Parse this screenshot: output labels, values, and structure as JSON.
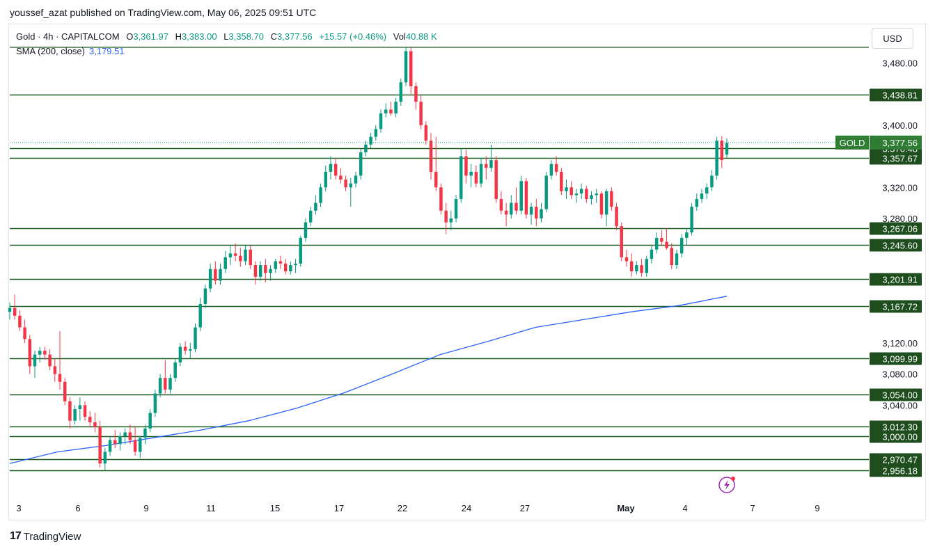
{
  "publisher": "youssef_azat published on TradingView.com, May 06, 2025 09:51 UTC",
  "legend": {
    "symbol": "Gold · 4h · CAPITALCOM",
    "o_label": "O",
    "o": "3,361.97",
    "h_label": "H",
    "h": "3,383.00",
    "l_label": "L",
    "l": "3,358.70",
    "c_label": "C",
    "c": "3,377.56",
    "change": "+15.57 (+0.46%)",
    "vol_label": "Vol",
    "vol": "40.88 K"
  },
  "sma": {
    "label": "SMA (200, close)",
    "value": "3,179.51"
  },
  "currency": "USD",
  "brand": "TradingView",
  "colors": {
    "up": "#089981",
    "down": "#f23645",
    "level_line": "#1b5e20",
    "level_label_bg": "#1e4d1e",
    "sma": "#2962ff",
    "price_label_bg": "#2e7d32"
  },
  "chart_data": {
    "type": "candlestick",
    "title": "Gold · 4h · CAPITALCOM",
    "ylim": [
      2950,
      3500
    ],
    "y_axis_ticks": [
      "3,480.00",
      "3,400.00",
      "3,320.00",
      "3,280.00",
      "3,120.00",
      "3,080.00",
      "3,040.00"
    ],
    "x_axis_ticks": [
      "3",
      "6",
      "9",
      "11",
      "15",
      "17",
      "22",
      "24",
      "27",
      "May",
      "4",
      "7",
      "9"
    ],
    "horizontal_levels": [
      "3,438.81",
      "3,370.48",
      "3,357.67",
      "3,267.06",
      "3,245.60",
      "3,201.91",
      "3,167.72",
      "3,099.99",
      "3,054.00",
      "3,012.30",
      "3,000.00",
      "2,970.47",
      "2,956.18"
    ],
    "current_price": {
      "label": "GOLD",
      "value": "3,377.56"
    },
    "sma_series": {
      "name": "SMA (200, close)",
      "values": [
        2965,
        2980,
        2988,
        2998,
        3008,
        3020,
        3036,
        3056,
        3080,
        3105,
        3122,
        3140,
        3150,
        3160,
        3168,
        3180
      ]
    },
    "candles": [
      [
        3160,
        3172,
        3150,
        3165
      ],
      [
        3165,
        3182,
        3150,
        3155
      ],
      [
        3155,
        3162,
        3135,
        3140
      ],
      [
        3140,
        3150,
        3120,
        3125
      ],
      [
        3125,
        3130,
        3080,
        3090
      ],
      [
        3090,
        3110,
        3075,
        3105
      ],
      [
        3105,
        3115,
        3095,
        3110
      ],
      [
        3110,
        3115,
        3098,
        3105
      ],
      [
        3105,
        3112,
        3085,
        3090
      ],
      [
        3090,
        3100,
        3070,
        3080
      ],
      [
        3080,
        3135,
        3060,
        3070
      ],
      [
        3070,
        3075,
        3040,
        3045
      ],
      [
        3045,
        3050,
        3010,
        3020
      ],
      [
        3020,
        3040,
        3015,
        3035
      ],
      [
        3035,
        3050,
        3020,
        3040
      ],
      [
        3040,
        3045,
        3020,
        3025
      ],
      [
        3025,
        3032,
        3012,
        3018
      ],
      [
        3018,
        3030,
        3005,
        3012
      ],
      [
        3012,
        3020,
        2960,
        2965
      ],
      [
        2965,
        2985,
        2956,
        2980
      ],
      [
        2980,
        3000,
        2975,
        2995
      ],
      [
        2995,
        3008,
        2985,
        2990
      ],
      [
        2990,
        3005,
        2982,
        3000
      ],
      [
        3000,
        3010,
        2990,
        3005
      ],
      [
        3005,
        3015,
        2990,
        2995
      ],
      [
        2995,
        3012,
        2975,
        2980
      ],
      [
        2980,
        3000,
        2972,
        2998
      ],
      [
        2998,
        3015,
        2990,
        3010
      ],
      [
        3010,
        3035,
        3005,
        3030
      ],
      [
        3030,
        3060,
        3025,
        3055
      ],
      [
        3055,
        3080,
        3050,
        3075
      ],
      [
        3075,
        3098,
        3055,
        3060
      ],
      [
        3060,
        3080,
        3055,
        3075
      ],
      [
        3075,
        3100,
        3070,
        3095
      ],
      [
        3095,
        3120,
        3090,
        3115
      ],
      [
        3115,
        3122,
        3105,
        3110
      ],
      [
        3110,
        3120,
        3100,
        3112
      ],
      [
        3112,
        3145,
        3108,
        3140
      ],
      [
        3140,
        3178,
        3135,
        3170
      ],
      [
        3170,
        3195,
        3165,
        3190
      ],
      [
        3190,
        3222,
        3185,
        3215
      ],
      [
        3215,
        3225,
        3195,
        3200
      ],
      [
        3200,
        3222,
        3195,
        3215
      ],
      [
        3215,
        3238,
        3210,
        3230
      ],
      [
        3230,
        3245,
        3220,
        3235
      ],
      [
        3235,
        3248,
        3225,
        3232
      ],
      [
        3232,
        3242,
        3218,
        3225
      ],
      [
        3225,
        3245,
        3220,
        3240
      ],
      [
        3240,
        3245,
        3215,
        3220
      ],
      [
        3220,
        3225,
        3195,
        3205
      ],
      [
        3205,
        3225,
        3200,
        3220
      ],
      [
        3220,
        3228,
        3198,
        3210
      ],
      [
        3210,
        3220,
        3200,
        3215
      ],
      [
        3215,
        3228,
        3210,
        3225
      ],
      [
        3225,
        3232,
        3215,
        3222
      ],
      [
        3222,
        3228,
        3208,
        3212
      ],
      [
        3212,
        3225,
        3208,
        3220
      ],
      [
        3220,
        3228,
        3210,
        3222
      ],
      [
        3222,
        3258,
        3218,
        3255
      ],
      [
        3255,
        3280,
        3250,
        3275
      ],
      [
        3275,
        3295,
        3270,
        3290
      ],
      [
        3290,
        3310,
        3285,
        3300
      ],
      [
        3300,
        3325,
        3295,
        3320
      ],
      [
        3320,
        3348,
        3315,
        3340
      ],
      [
        3340,
        3360,
        3330,
        3350
      ],
      [
        3350,
        3358,
        3330,
        3335
      ],
      [
        3335,
        3345,
        3325,
        3330
      ],
      [
        3330,
        3335,
        3315,
        3320
      ],
      [
        3320,
        3332,
        3295,
        3325
      ],
      [
        3325,
        3340,
        3320,
        3335
      ],
      [
        3335,
        3370,
        3330,
        3365
      ],
      [
        3365,
        3380,
        3360,
        3375
      ],
      [
        3375,
        3390,
        3370,
        3385
      ],
      [
        3385,
        3400,
        3380,
        3395
      ],
      [
        3395,
        3420,
        3390,
        3415
      ],
      [
        3415,
        3428,
        3410,
        3420
      ],
      [
        3420,
        3430,
        3412,
        3415
      ],
      [
        3415,
        3435,
        3410,
        3430
      ],
      [
        3430,
        3460,
        3425,
        3455
      ],
      [
        3455,
        3500,
        3450,
        3495
      ],
      [
        3495,
        3500,
        3440,
        3450
      ],
      [
        3450,
        3455,
        3420,
        3430
      ],
      [
        3430,
        3438,
        3395,
        3400
      ],
      [
        3400,
        3405,
        3375,
        3380
      ],
      [
        3380,
        3390,
        3330,
        3340
      ],
      [
        3340,
        3385,
        3315,
        3320
      ],
      [
        3320,
        3325,
        3285,
        3290
      ],
      [
        3290,
        3300,
        3260,
        3275
      ],
      [
        3275,
        3290,
        3265,
        3280
      ],
      [
        3280,
        3310,
        3275,
        3305
      ],
      [
        3305,
        3370,
        3300,
        3360
      ],
      [
        3360,
        3368,
        3325,
        3335
      ],
      [
        3335,
        3350,
        3320,
        3340
      ],
      [
        3340,
        3348,
        3320,
        3325
      ],
      [
        3325,
        3358,
        3320,
        3350
      ],
      [
        3350,
        3360,
        3330,
        3345
      ],
      [
        3345,
        3375,
        3340,
        3355
      ],
      [
        3355,
        3360,
        3300,
        3305
      ],
      [
        3305,
        3315,
        3285,
        3290
      ],
      [
        3290,
        3300,
        3270,
        3285
      ],
      [
        3285,
        3310,
        3280,
        3300
      ],
      [
        3300,
        3320,
        3285,
        3290
      ],
      [
        3290,
        3335,
        3285,
        3328
      ],
      [
        3328,
        3332,
        3280,
        3285
      ],
      [
        3285,
        3300,
        3272,
        3295
      ],
      [
        3295,
        3305,
        3270,
        3280
      ],
      [
        3280,
        3300,
        3275,
        3292
      ],
      [
        3292,
        3340,
        3288,
        3335
      ],
      [
        3335,
        3355,
        3330,
        3350
      ],
      [
        3350,
        3360,
        3335,
        3340
      ],
      [
        3340,
        3345,
        3310,
        3315
      ],
      [
        3315,
        3330,
        3305,
        3320
      ],
      [
        3320,
        3328,
        3305,
        3310
      ],
      [
        3310,
        3318,
        3300,
        3312
      ],
      [
        3312,
        3325,
        3305,
        3318
      ],
      [
        3318,
        3322,
        3300,
        3305
      ],
      [
        3305,
        3315,
        3298,
        3310
      ],
      [
        3310,
        3318,
        3300,
        3312
      ],
      [
        3312,
        3315,
        3280,
        3285
      ],
      [
        3285,
        3318,
        3270,
        3315
      ],
      [
        3315,
        3320,
        3290,
        3295
      ],
      [
        3295,
        3300,
        3265,
        3270
      ],
      [
        3270,
        3275,
        3225,
        3230
      ],
      [
        3230,
        3240,
        3218,
        3225
      ],
      [
        3225,
        3235,
        3205,
        3212
      ],
      [
        3212,
        3225,
        3208,
        3220
      ],
      [
        3220,
        3228,
        3205,
        3210
      ],
      [
        3210,
        3232,
        3205,
        3228
      ],
      [
        3228,
        3245,
        3222,
        3240
      ],
      [
        3240,
        3262,
        3235,
        3255
      ],
      [
        3255,
        3265,
        3245,
        3250
      ],
      [
        3250,
        3268,
        3240,
        3242
      ],
      [
        3242,
        3248,
        3215,
        3220
      ],
      [
        3220,
        3240,
        3215,
        3235
      ],
      [
        3235,
        3260,
        3230,
        3255
      ],
      [
        3255,
        3268,
        3245,
        3262
      ],
      [
        3262,
        3300,
        3258,
        3295
      ],
      [
        3295,
        3312,
        3290,
        3305
      ],
      [
        3305,
        3318,
        3300,
        3312
      ],
      [
        3312,
        3325,
        3305,
        3320
      ],
      [
        3320,
        3342,
        3315,
        3335
      ],
      [
        3335,
        3385,
        3330,
        3380
      ],
      [
        3380,
        3386,
        3345,
        3355
      ],
      [
        3362,
        3383,
        3358,
        3377
      ]
    ]
  }
}
